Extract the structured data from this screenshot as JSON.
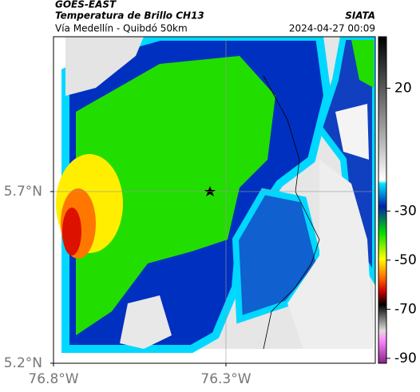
{
  "header": {
    "source": "GOES-EAST",
    "title": "Temperatura de Brillo CH13",
    "brand": "SIATA",
    "route": "Vía Medellín - Quibdó 50km",
    "timestamp": "2024-04-27 00:09"
  },
  "map": {
    "lon_range": [
      -76.8,
      -75.867
    ],
    "lat_range": [
      5.2,
      6.151
    ],
    "xticks": [
      {
        "value": -76.8,
        "label": "76.8°W"
      },
      {
        "value": -76.3,
        "label": "76.3°W"
      }
    ],
    "yticks": [
      {
        "value": 5.2,
        "label": "5.2°N"
      },
      {
        "value": 5.7,
        "label": "5.7°N"
      }
    ]
  },
  "colorbar": {
    "range": [
      -92,
      41
    ],
    "ticks": [
      20,
      -30,
      -50,
      -70,
      -90
    ]
  }
}
